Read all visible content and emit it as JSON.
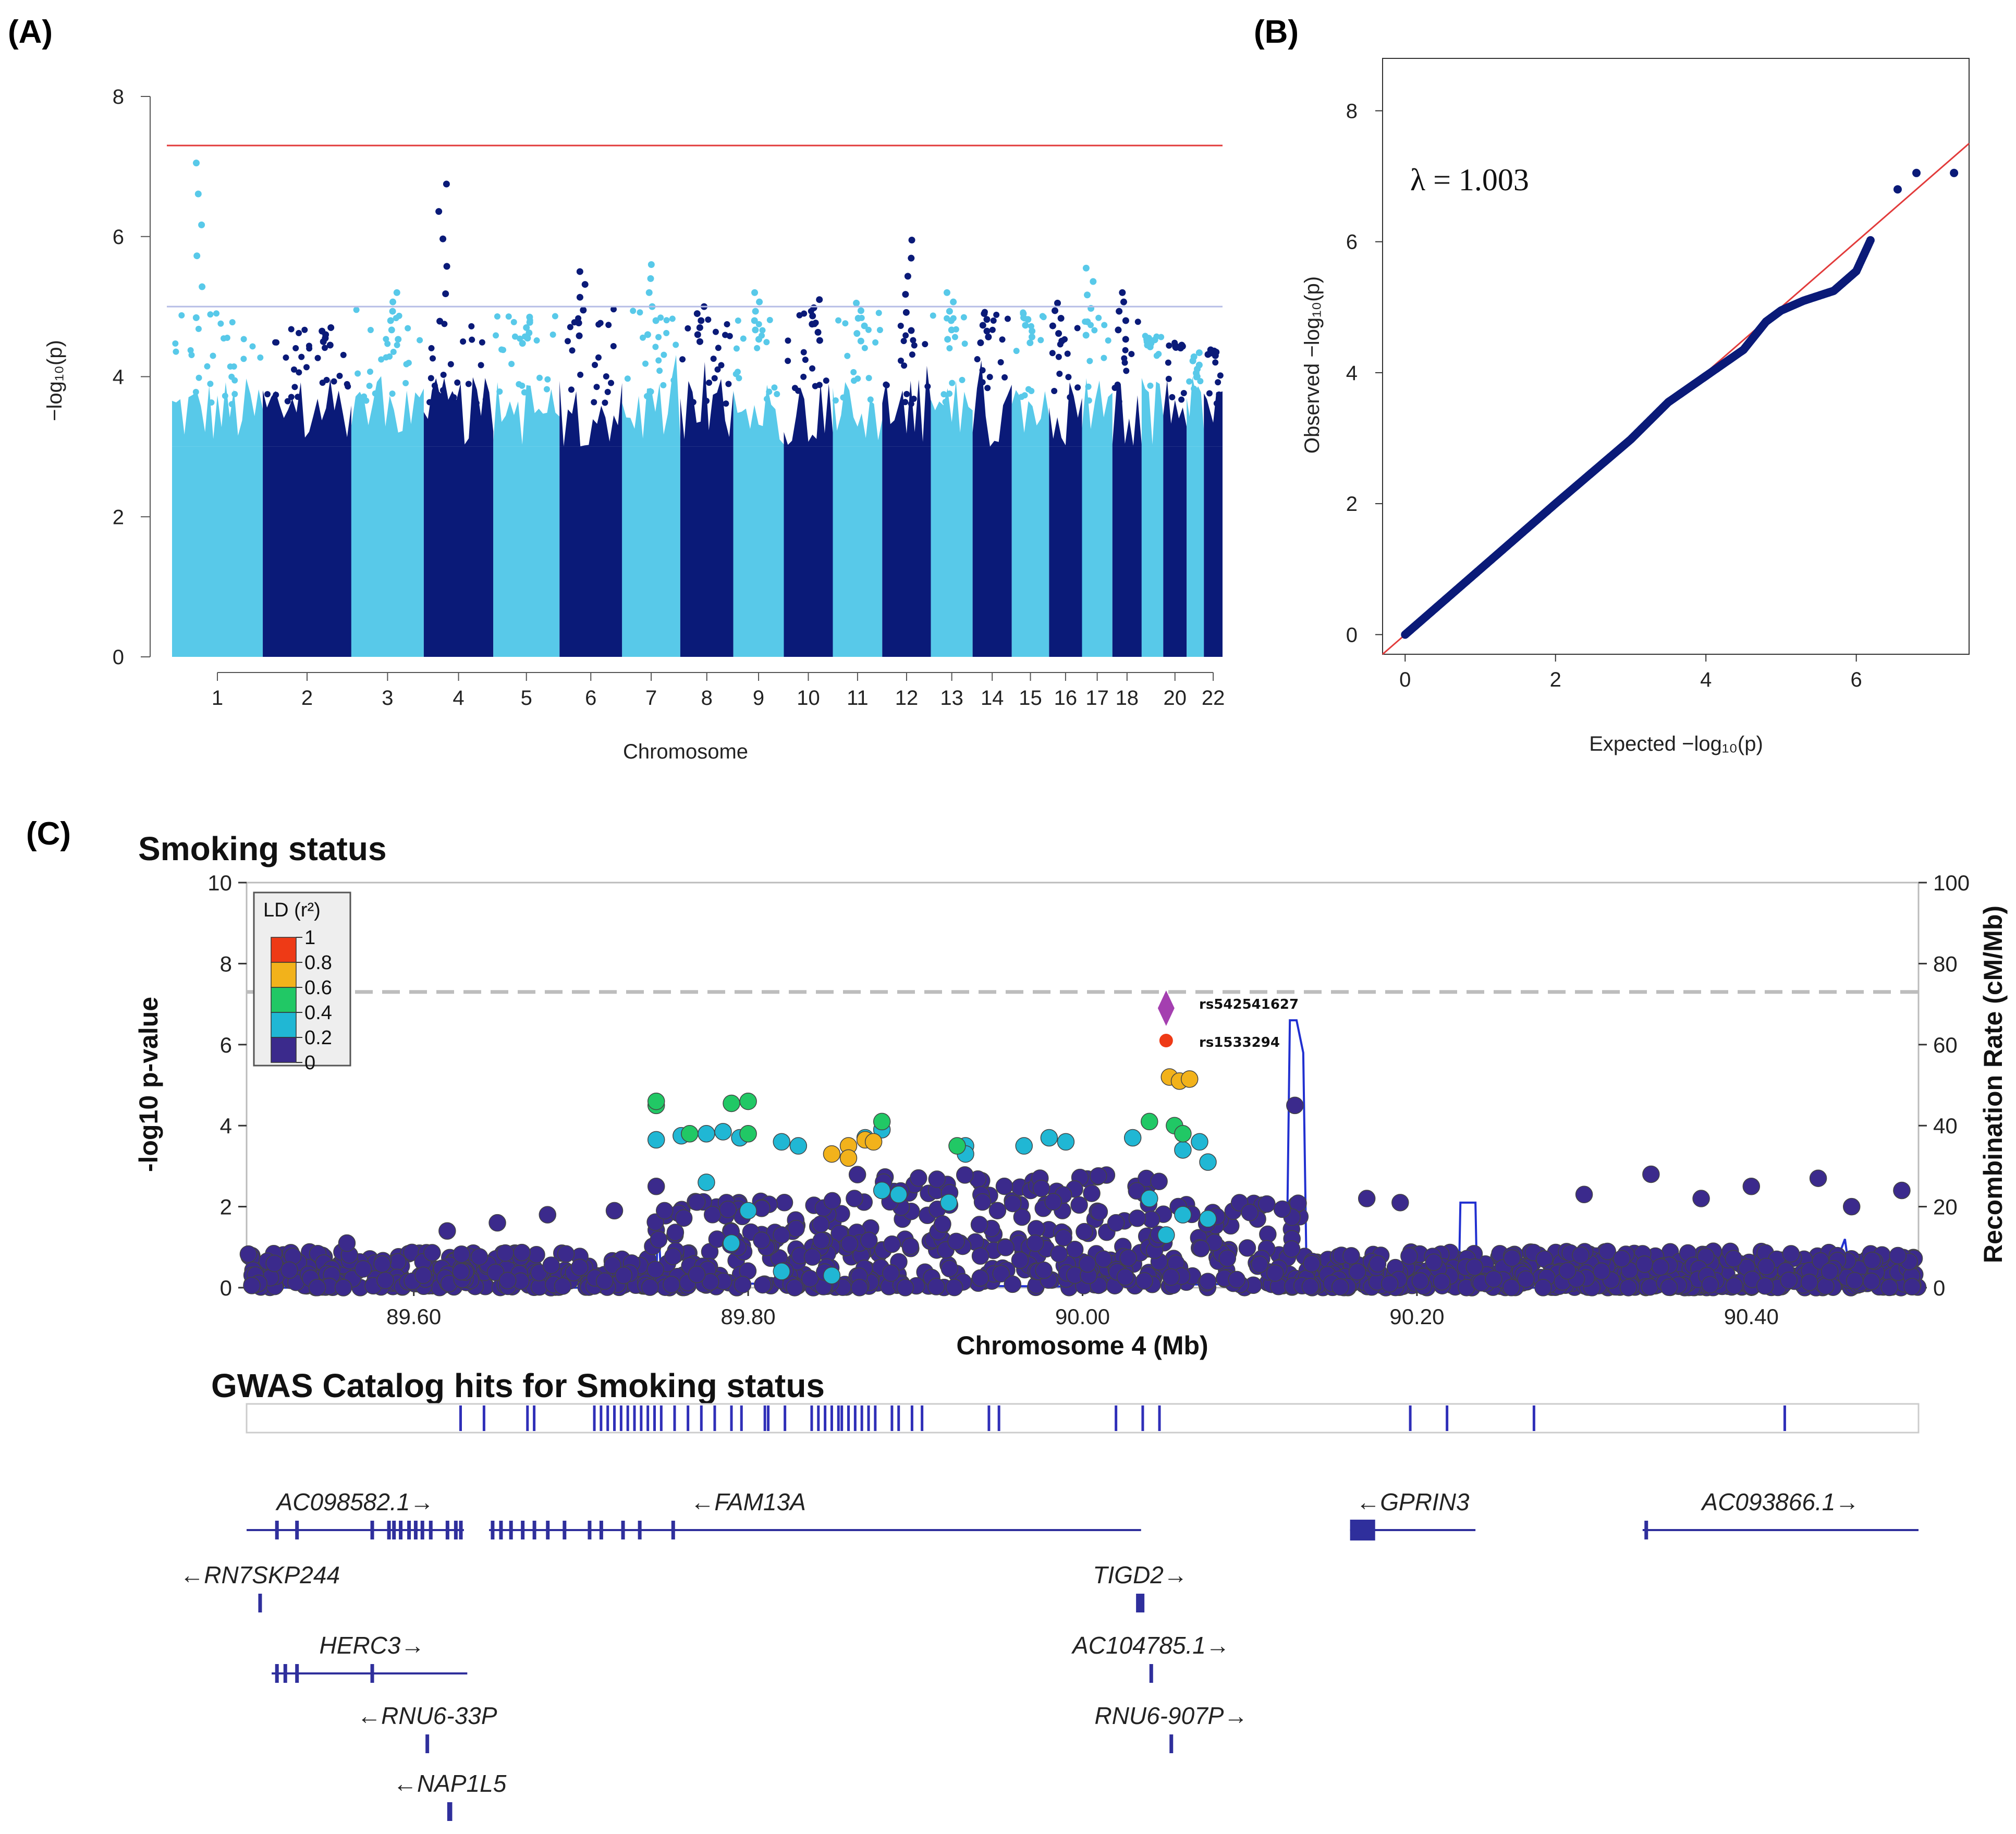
{
  "panel_labels": {
    "a": "(A)",
    "b": "(B)",
    "c": "(C)"
  },
  "chart_data": [
    {
      "id": "A",
      "type": "scatter",
      "subtype": "manhattan",
      "xlabel": "Chromosome",
      "ylabel": "−log₁₀(p)",
      "ylim": [
        0,
        8
      ],
      "yticks": [
        "0",
        "2",
        "4",
        "6",
        "8"
      ],
      "xtick_labels": [
        "1",
        "2",
        "3",
        "4",
        "5",
        "6",
        "7",
        "8",
        "9",
        "10",
        "11",
        "12",
        "13",
        "14",
        "15",
        "16",
        "17",
        "18",
        "20",
        "22"
      ],
      "chromosomes": [
        {
          "chr": "1",
          "max": 7.05,
          "color": "light"
        },
        {
          "chr": "2",
          "max": 4.7,
          "color": "dark"
        },
        {
          "chr": "3",
          "max": 5.2,
          "color": "light"
        },
        {
          "chr": "4",
          "max": 6.75,
          "color": "dark"
        },
        {
          "chr": "5",
          "max": 4.85,
          "color": "light"
        },
        {
          "chr": "6",
          "max": 5.5,
          "color": "dark"
        },
        {
          "chr": "7",
          "max": 5.6,
          "color": "light"
        },
        {
          "chr": "8",
          "max": 5.0,
          "color": "dark"
        },
        {
          "chr": "9",
          "max": 5.2,
          "color": "light"
        },
        {
          "chr": "10",
          "max": 5.1,
          "color": "dark"
        },
        {
          "chr": "11",
          "max": 5.05,
          "color": "light"
        },
        {
          "chr": "12",
          "max": 5.95,
          "color": "dark"
        },
        {
          "chr": "13",
          "max": 5.2,
          "color": "light"
        },
        {
          "chr": "14",
          "max": 4.9,
          "color": "dark"
        },
        {
          "chr": "15",
          "max": 4.9,
          "color": "light"
        },
        {
          "chr": "16",
          "max": 5.05,
          "color": "dark"
        },
        {
          "chr": "17",
          "max": 5.55,
          "color": "light"
        },
        {
          "chr": "18",
          "max": 5.2,
          "color": "dark"
        },
        {
          "chr": "19",
          "max": 4.55,
          "color": "light"
        },
        {
          "chr": "20",
          "max": 4.45,
          "color": "dark"
        },
        {
          "chr": "21",
          "max": 4.05,
          "color": "light"
        },
        {
          "chr": "22",
          "max": 4.3,
          "color": "dark"
        }
      ],
      "genome_wide_line": 7.3,
      "suggestive_line": 5.0,
      "colors": {
        "light": "#58c9e9",
        "dark": "#0a1a78",
        "genome_wide": "#e23b3b",
        "suggestive": "#b6bde6"
      }
    },
    {
      "id": "B",
      "type": "scatter",
      "subtype": "qq",
      "xlabel": "Expected  −log₁₀(p)",
      "ylabel": "Observed  −log₁₀(p)",
      "xlim": [
        -0.3,
        7.5
      ],
      "ylim": [
        -0.3,
        8.8
      ],
      "xticks": [
        "0",
        "2",
        "4",
        "6"
      ],
      "yticks": [
        "0",
        "2",
        "4",
        "6",
        "8"
      ],
      "annotation": "λ = 1.003",
      "observed_curve": [
        [
          0,
          0
        ],
        [
          1,
          1
        ],
        [
          2,
          2
        ],
        [
          3,
          2.98
        ],
        [
          3.5,
          3.55
        ],
        [
          4,
          3.95
        ],
        [
          4.5,
          4.35
        ],
        [
          4.8,
          4.78
        ],
        [
          5.0,
          4.95
        ],
        [
          5.3,
          5.1
        ],
        [
          5.7,
          5.25
        ],
        [
          6.0,
          5.55
        ],
        [
          6.2,
          6.05
        ]
      ],
      "top_points": [
        [
          6.55,
          6.8
        ],
        [
          6.8,
          7.05
        ],
        [
          7.3,
          7.05
        ]
      ],
      "colors": {
        "points": "#0a1a78",
        "line": "#e23b3b"
      }
    },
    {
      "id": "C",
      "type": "scatter",
      "subtype": "regional_association",
      "title": "Smoking status",
      "xlabel": "Chromosome 4 (Mb)",
      "ylabel": "-log10 p-value",
      "y2label": "Recombination Rate (cM/Mb)",
      "xlim": [
        89.5,
        90.5
      ],
      "ylim": [
        0,
        10
      ],
      "y2lim": [
        0,
        100
      ],
      "xticks": [
        "89.60",
        "89.80",
        "90.00",
        "90.20",
        "90.40"
      ],
      "yticks": [
        "0",
        "2",
        "4",
        "6",
        "8",
        "10"
      ],
      "y2ticks": [
        "0",
        "20",
        "40",
        "60",
        "80",
        "100"
      ],
      "significance_line": 7.3,
      "lead_snp": {
        "name": "rs542541627",
        "x": 90.05,
        "y": 6.9
      },
      "second_snp": {
        "name": "rs1533294",
        "x": 90.05,
        "y": 6.1
      },
      "legend_title": "LD (r²)",
      "legend_ticks": [
        "1",
        "0.8",
        "0.6",
        "0.4",
        "0.2",
        "0"
      ],
      "ld_colors": [
        "#3b2a8c",
        "#20b7d4",
        "#21c865",
        "#f2b21b",
        "#ee3a16"
      ],
      "lead_color": "#a43fb0",
      "recomb_color": "#2130d0",
      "catalog_title": "GWAS Catalog hits for Smoking status",
      "catalog_hits_mb": [
        89.628,
        89.642,
        89.668,
        89.672,
        89.708,
        89.712,
        89.716,
        89.72,
        89.724,
        89.728,
        89.732,
        89.736,
        89.74,
        89.744,
        89.748,
        89.756,
        89.764,
        89.772,
        89.78,
        89.79,
        89.796,
        89.81,
        89.812,
        89.822,
        89.838,
        89.842,
        89.846,
        89.85,
        89.854,
        89.856,
        89.86,
        89.864,
        89.868,
        89.872,
        89.876,
        89.886,
        89.89,
        89.898,
        89.904,
        89.944,
        89.95,
        90.02,
        90.036,
        90.046,
        90.196,
        90.218,
        90.27,
        90.42
      ],
      "genes": [
        {
          "name": "AC098582.1→",
          "start": 89.5,
          "end": 89.63,
          "row": 0,
          "exons": [
            89.518,
            89.53,
            89.575,
            89.585,
            89.588,
            89.592,
            89.597,
            89.601,
            89.605,
            89.61,
            89.62,
            89.625,
            89.628
          ]
        },
        {
          "name": "←FAM13A",
          "start": 89.645,
          "end": 90.035,
          "row": 0,
          "exons": [
            89.647,
            89.652,
            89.658,
            89.665,
            89.672,
            89.68,
            89.69,
            89.705,
            89.712,
            89.725,
            89.735,
            89.755
          ]
        },
        {
          "name": "←GPRIN3",
          "start": 90.16,
          "end": 90.235,
          "row": 0,
          "exons": [
            89.5
          ],
          "box": [
            90.16,
            90.175
          ]
        },
        {
          "name": "AC093866.1→",
          "start": 90.335,
          "end": 90.5,
          "row": 0,
          "exons": [
            90.337
          ]
        },
        {
          "name": "←RN7SKP244",
          "start": 89.507,
          "end": 89.509,
          "row": 1,
          "exons": [
            89.508
          ]
        },
        {
          "name": "TIGD2→",
          "start": 90.032,
          "end": 90.037,
          "row": 1,
          "exons": [
            90.034
          ]
        },
        {
          "name": "HERC3→",
          "start": 89.515,
          "end": 89.632,
          "row": 2,
          "exons": [
            89.518,
            89.523,
            89.53,
            89.575
          ]
        },
        {
          "name": "AC104785.1→",
          "start": 90.04,
          "end": 90.042,
          "row": 2,
          "exons": [
            90.041
          ]
        },
        {
          "name": "←RNU6-33P",
          "start": 89.607,
          "end": 89.609,
          "row": 3,
          "exons": [
            89.608
          ]
        },
        {
          "name": "RNU6-907P→",
          "start": 90.052,
          "end": 90.054,
          "row": 3,
          "exons": [
            90.053
          ]
        },
        {
          "name": "←NAP1L5",
          "start": 89.62,
          "end": 89.623,
          "row": 4,
          "exons": [
            89.621
          ]
        }
      ]
    }
  ]
}
